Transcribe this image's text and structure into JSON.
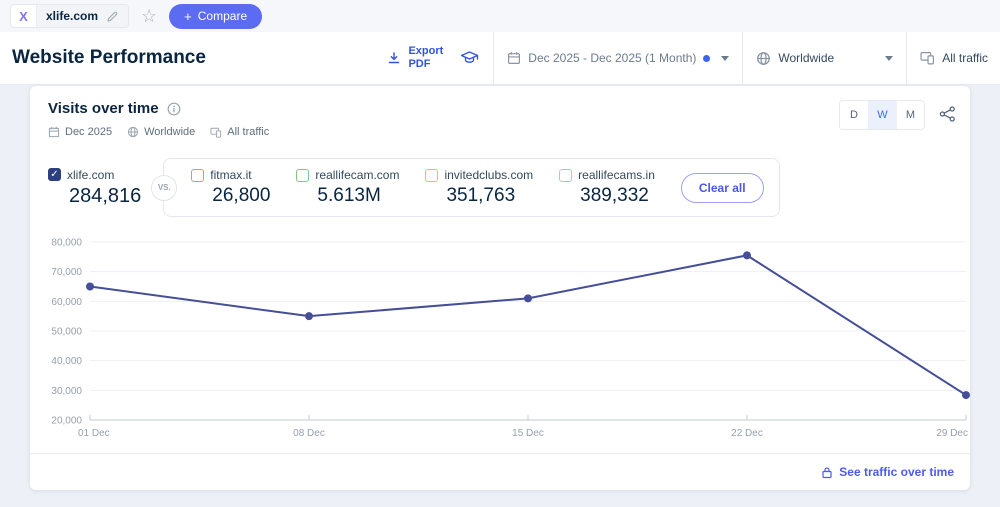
{
  "icons": {
    "star": "☆",
    "check": "✓",
    "plus": "+"
  },
  "colors": {
    "accent_blue": "#2f54e0",
    "button_blue": "#5c6cf2",
    "link_blue": "#4b5af0",
    "series_line": "#454e96"
  },
  "topbar": {
    "favicon_letter": "X",
    "domain": "xlife.com",
    "compare_label": "Compare"
  },
  "header": {
    "title": "Website Performance",
    "export_line1": "Export",
    "export_line2": "PDF",
    "date_range": "Dec 2025 - Dec 2025 (1 Month)",
    "geo": "Worldwide",
    "traffic": "All traffic"
  },
  "widget": {
    "title": "Visits over time",
    "filter_date": "Dec 2025",
    "filter_geo": "Worldwide",
    "filter_traffic": "All traffic",
    "granularity": [
      "D",
      "W",
      "M"
    ],
    "granularity_selected": "W",
    "main_site": {
      "domain": "xlife.com",
      "value": "284,816",
      "color": "#2e3f7f"
    },
    "vs_label": "VS.",
    "competitors": [
      {
        "domain": "fitmax.it",
        "value": "26,800",
        "color": "#ef9349"
      },
      {
        "domain": "reallifecam.com",
        "value": "5.613M",
        "color": "#7cc889"
      },
      {
        "domain": "invitedclubs.com",
        "value": "351,763",
        "color": "#e4c23e"
      },
      {
        "domain": "reallifecams.in",
        "value": "389,332",
        "color": "#8ed1ea"
      }
    ],
    "clear_all_label": "Clear all",
    "footer_link": "See traffic over time"
  },
  "chart_data": {
    "type": "line",
    "title": "Visits over time",
    "x": [
      "01 Dec",
      "08 Dec",
      "15 Dec",
      "22 Dec",
      "29 Dec"
    ],
    "series": [
      {
        "name": "xlife.com",
        "color": "#454e96",
        "values": [
          65000,
          55000,
          61000,
          75500,
          28400
        ]
      }
    ],
    "ylim": [
      20000,
      80000
    ],
    "yticks": [
      20000,
      30000,
      40000,
      50000,
      60000,
      70000,
      80000
    ],
    "xlabel": "",
    "ylabel": "",
    "grid": true,
    "legend_position": "top"
  }
}
